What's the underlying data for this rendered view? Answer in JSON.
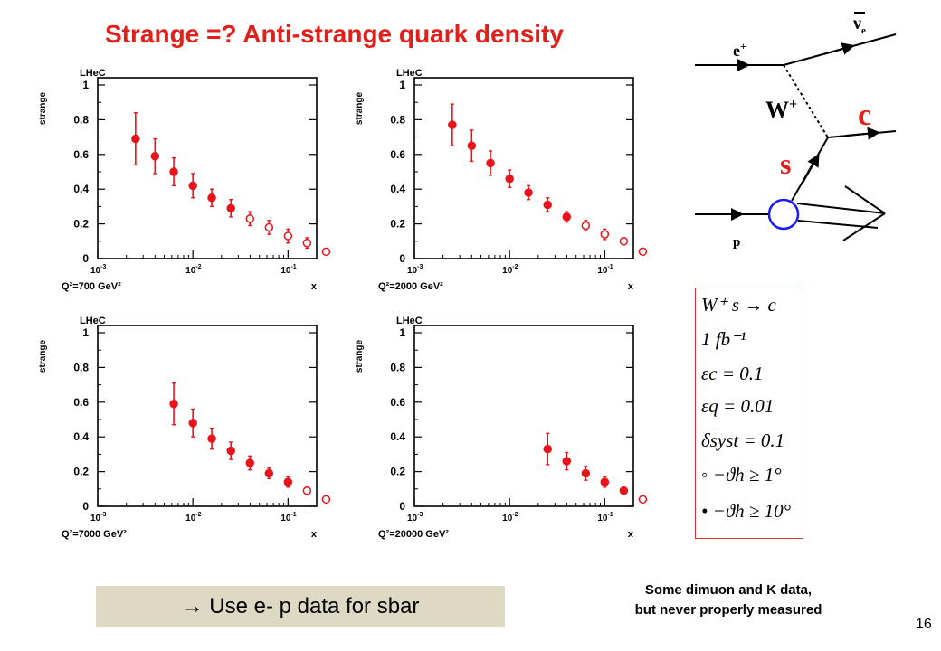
{
  "slide": {
    "title": "Strange =? Anti-strange quark density",
    "page_number": "16",
    "callout": "→ Use e- p data for sbar",
    "note_lines": [
      "Some  dimuon and K data,",
      "but never properly measured"
    ]
  },
  "colors": {
    "title": "#e0201a",
    "marker": "#e8141a",
    "box_border": "#d33333",
    "callout_bg": "#ddd9c3"
  },
  "feynman": {
    "labels": {
      "positron": "e",
      "positron_sup": "+",
      "neutrino": "ν",
      "neutrino_sub": "e",
      "boson": "W",
      "boson_sup": "+",
      "charm": "c",
      "strange": "s",
      "proton": "p"
    }
  },
  "parameters": {
    "rows": [
      "W⁺ s → c",
      "1 fb⁻¹",
      "εc = 0.1",
      "εq = 0.01",
      "δsyst = 0.1",
      "◦ −ϑh ≥ 1°",
      "• −ϑh ≥ 10°"
    ]
  },
  "chart_data": [
    {
      "type": "scatter",
      "header": "LHeC",
      "ylabel": "strange",
      "xlabel": "x",
      "q2_label": "Q²=700 GeV²",
      "xscale": "log",
      "xlim": [
        0.001,
        0.2
      ],
      "ylim": [
        0,
        1
      ],
      "yticks": [
        "0",
        "0.2",
        "0.4",
        "0.6",
        "0.8",
        "1"
      ],
      "xticks": [
        {
          "base": "10",
          "exp": "-3"
        },
        {
          "base": "10",
          "exp": "-2"
        },
        {
          "base": "10",
          "exp": "-1"
        }
      ],
      "points": [
        {
          "x": 0.0025,
          "y": 0.69,
          "err": 0.15,
          "filled": true
        },
        {
          "x": 0.004,
          "y": 0.59,
          "err": 0.1,
          "filled": true
        },
        {
          "x": 0.0063,
          "y": 0.5,
          "err": 0.08,
          "filled": true
        },
        {
          "x": 0.01,
          "y": 0.42,
          "err": 0.07,
          "filled": true
        },
        {
          "x": 0.0158,
          "y": 0.35,
          "err": 0.05,
          "filled": true
        },
        {
          "x": 0.0251,
          "y": 0.29,
          "err": 0.05,
          "filled": true
        },
        {
          "x": 0.0398,
          "y": 0.23,
          "err": 0.04,
          "filled": false
        },
        {
          "x": 0.0631,
          "y": 0.18,
          "err": 0.04,
          "filled": false
        },
        {
          "x": 0.1,
          "y": 0.13,
          "err": 0.04,
          "filled": false
        },
        {
          "x": 0.1585,
          "y": 0.09,
          "err": 0.03,
          "filled": false
        },
        {
          "x": 0.2512,
          "y": 0.04,
          "err": 0.01,
          "filled": false
        }
      ]
    },
    {
      "type": "scatter",
      "header": "LHeC",
      "ylabel": "strange",
      "xlabel": "x",
      "q2_label": "Q²=2000 GeV²",
      "xscale": "log",
      "xlim": [
        0.001,
        0.2
      ],
      "ylim": [
        0,
        1
      ],
      "yticks": [
        "0",
        "0.2",
        "0.4",
        "0.6",
        "0.8",
        "1"
      ],
      "xticks": [
        {
          "base": "10",
          "exp": "-3"
        },
        {
          "base": "10",
          "exp": "-2"
        },
        {
          "base": "10",
          "exp": "-1"
        }
      ],
      "points": [
        {
          "x": 0.0025,
          "y": 0.77,
          "err": 0.12,
          "filled": true
        },
        {
          "x": 0.004,
          "y": 0.65,
          "err": 0.09,
          "filled": true
        },
        {
          "x": 0.0063,
          "y": 0.55,
          "err": 0.07,
          "filled": true
        },
        {
          "x": 0.01,
          "y": 0.46,
          "err": 0.05,
          "filled": true
        },
        {
          "x": 0.0158,
          "y": 0.38,
          "err": 0.04,
          "filled": true
        },
        {
          "x": 0.0251,
          "y": 0.31,
          "err": 0.04,
          "filled": true
        },
        {
          "x": 0.0398,
          "y": 0.24,
          "err": 0.03,
          "filled": true
        },
        {
          "x": 0.0631,
          "y": 0.19,
          "err": 0.03,
          "filled": false
        },
        {
          "x": 0.1,
          "y": 0.14,
          "err": 0.03,
          "filled": false
        },
        {
          "x": 0.1585,
          "y": 0.1,
          "err": 0.02,
          "filled": false
        },
        {
          "x": 0.2512,
          "y": 0.04,
          "err": 0.01,
          "filled": false
        }
      ]
    },
    {
      "type": "scatter",
      "header": "LHeC",
      "ylabel": "strange",
      "xlabel": "x",
      "q2_label": "Q²=7000 GeV²",
      "xscale": "log",
      "xlim": [
        0.001,
        0.2
      ],
      "ylim": [
        0,
        1
      ],
      "yticks": [
        "0",
        "0.2",
        "0.4",
        "0.6",
        "0.8",
        "1"
      ],
      "xticks": [
        {
          "base": "10",
          "exp": "-3"
        },
        {
          "base": "10",
          "exp": "-2"
        },
        {
          "base": "10",
          "exp": "-1"
        }
      ],
      "points": [
        {
          "x": 0.0063,
          "y": 0.59,
          "err": 0.12,
          "filled": true
        },
        {
          "x": 0.01,
          "y": 0.48,
          "err": 0.08,
          "filled": true
        },
        {
          "x": 0.0158,
          "y": 0.39,
          "err": 0.06,
          "filled": true
        },
        {
          "x": 0.0251,
          "y": 0.32,
          "err": 0.05,
          "filled": true
        },
        {
          "x": 0.0398,
          "y": 0.25,
          "err": 0.04,
          "filled": true
        },
        {
          "x": 0.0631,
          "y": 0.19,
          "err": 0.03,
          "filled": true
        },
        {
          "x": 0.1,
          "y": 0.14,
          "err": 0.03,
          "filled": true
        },
        {
          "x": 0.1585,
          "y": 0.09,
          "err": 0.02,
          "filled": false
        },
        {
          "x": 0.2512,
          "y": 0.04,
          "err": 0.01,
          "filled": false
        }
      ]
    },
    {
      "type": "scatter",
      "header": "LHeC",
      "ylabel": "strange",
      "xlabel": "x",
      "q2_label": "Q²=20000 GeV²",
      "xscale": "log",
      "xlim": [
        0.001,
        0.2
      ],
      "ylim": [
        0,
        1
      ],
      "yticks": [
        "0",
        "0.2",
        "0.4",
        "0.6",
        "0.8",
        "1"
      ],
      "xticks": [
        {
          "base": "10",
          "exp": "-3"
        },
        {
          "base": "10",
          "exp": "-2"
        },
        {
          "base": "10",
          "exp": "-1"
        }
      ],
      "points": [
        {
          "x": 0.0251,
          "y": 0.33,
          "err": 0.09,
          "filled": true
        },
        {
          "x": 0.0398,
          "y": 0.26,
          "err": 0.05,
          "filled": true
        },
        {
          "x": 0.0631,
          "y": 0.19,
          "err": 0.04,
          "filled": true
        },
        {
          "x": 0.1,
          "y": 0.14,
          "err": 0.03,
          "filled": true
        },
        {
          "x": 0.1585,
          "y": 0.09,
          "err": 0.02,
          "filled": true
        },
        {
          "x": 0.2512,
          "y": 0.04,
          "err": 0.01,
          "filled": false
        }
      ]
    }
  ]
}
